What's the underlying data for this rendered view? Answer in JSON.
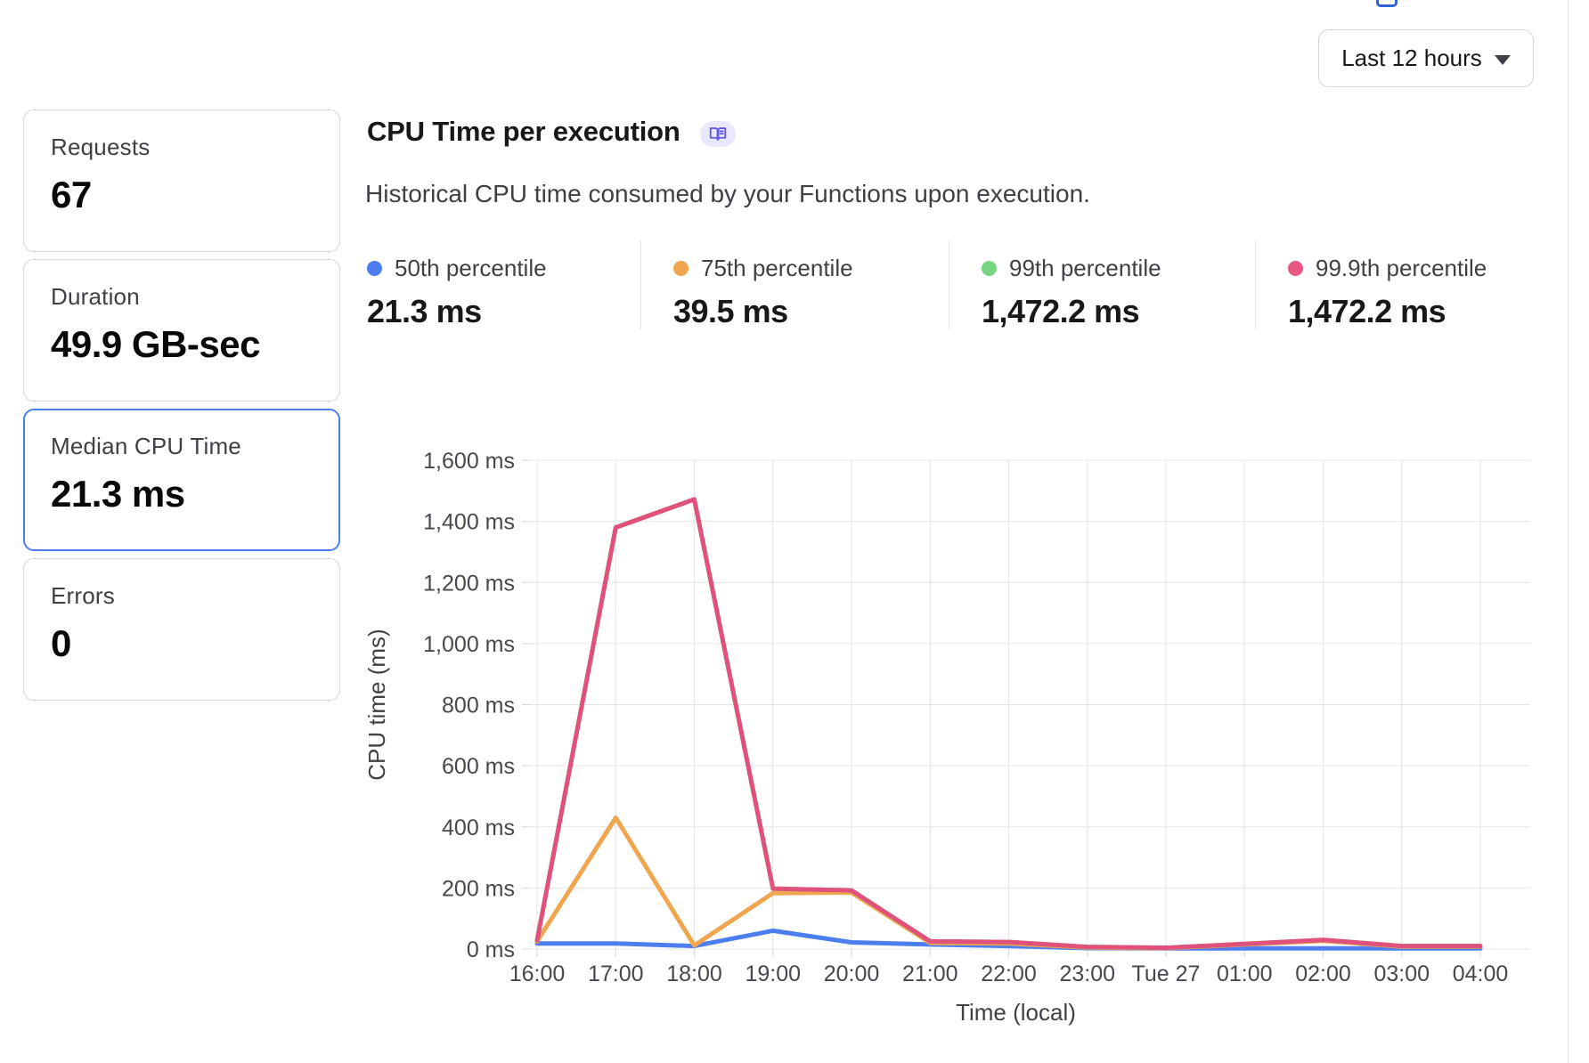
{
  "time_range": {
    "label": "Last 12 hours"
  },
  "panel": {
    "title": "CPU Time per execution",
    "subtitle": "Historical CPU time consumed by your Functions upon execution."
  },
  "stat_cards": [
    {
      "label": "Requests",
      "value": "67",
      "selected": false
    },
    {
      "label": "Duration",
      "value": "49.9 GB-sec",
      "selected": false
    },
    {
      "label": "Median CPU Time",
      "value": "21.3 ms",
      "selected": true
    },
    {
      "label": "Errors",
      "value": "0",
      "selected": false
    }
  ],
  "legend": [
    {
      "label": "50th percentile",
      "value": "21.3 ms",
      "color": "#4c7ef0"
    },
    {
      "label": "75th percentile",
      "value": "39.5 ms",
      "color": "#f0a64e"
    },
    {
      "label": "99th percentile",
      "value": "1,472.2 ms",
      "color": "#77d481"
    },
    {
      "label": "99.9th percentile",
      "value": "1,472.2 ms",
      "color": "#e75983"
    }
  ],
  "chart_data": {
    "type": "line",
    "title": "CPU Time per execution",
    "xlabel": "Time (local)",
    "ylabel": "CPU time (ms)",
    "x": [
      "16:00",
      "17:00",
      "18:00",
      "19:00",
      "20:00",
      "21:00",
      "22:00",
      "23:00",
      "Tue 27",
      "01:00",
      "02:00",
      "03:00",
      "04:00"
    ],
    "series": [
      {
        "name": "50th percentile",
        "color": "#4c7ef0",
        "values": [
          18,
          18,
          10,
          60,
          22,
          15,
          10,
          3,
          2,
          2,
          2,
          2,
          2
        ]
      },
      {
        "name": "75th percentile",
        "color": "#f0a64e",
        "values": [
          25,
          430,
          12,
          183,
          185,
          20,
          18,
          5,
          3,
          15,
          27,
          8,
          8
        ]
      },
      {
        "name": "99th percentile",
        "color": "#77d481",
        "values": [
          28,
          1380,
          1472.2,
          198,
          192,
          25,
          23,
          7,
          4,
          17,
          30,
          10,
          10
        ]
      },
      {
        "name": "99.9th percentile",
        "color": "#e0517c",
        "values": [
          28,
          1380,
          1472.2,
          198,
          192,
          25,
          23,
          7,
          4,
          17,
          30,
          10,
          10
        ]
      }
    ],
    "ylim": [
      0,
      1600
    ],
    "ytick_step": 200,
    "ytick_suffix": " ms",
    "yticks": [
      "0 ms",
      "200 ms",
      "400 ms",
      "600 ms",
      "800 ms",
      "1,000 ms",
      "1,200 ms",
      "1,400 ms",
      "1,600 ms"
    ],
    "grid": true,
    "legend_position": "top"
  },
  "colors": {
    "grid": "#e4e4e7",
    "selected_card_border": "#4880f0",
    "docs_pill_bg": "#e9e8fc",
    "docs_pill_icon": "#6058e8"
  }
}
